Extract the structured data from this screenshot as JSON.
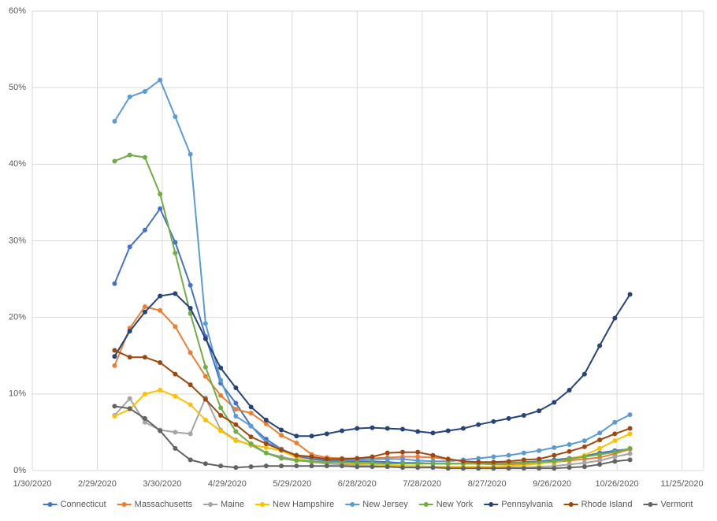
{
  "chart_data": {
    "type": "line",
    "x": [
      "2020-03-08",
      "2020-03-15",
      "2020-03-22",
      "2020-03-29",
      "2020-04-05",
      "2020-04-12",
      "2020-04-19",
      "2020-04-26",
      "2020-05-03",
      "2020-05-10",
      "2020-05-17",
      "2020-05-24",
      "2020-05-31",
      "2020-06-07",
      "2020-06-14",
      "2020-06-21",
      "2020-06-28",
      "2020-07-05",
      "2020-07-12",
      "2020-07-19",
      "2020-07-26",
      "2020-08-02",
      "2020-08-09",
      "2020-08-16",
      "2020-08-23",
      "2020-08-30",
      "2020-09-06",
      "2020-09-13",
      "2020-09-20",
      "2020-09-27",
      "2020-10-04",
      "2020-10-11",
      "2020-10-18",
      "2020-10-25",
      "2020-11-01"
    ],
    "series": [
      {
        "name": "Connecticut",
        "color": "#4472c4",
        "values": [
          24.4,
          29.2,
          31.4,
          34.2,
          29.8,
          24.2,
          17.5,
          11.4,
          8.8,
          5.8,
          4.1,
          2.8,
          1.9,
          1.5,
          1.3,
          1.2,
          1.2,
          1.2,
          1.1,
          1.0,
          1.0,
          0.9,
          0.9,
          0.9,
          0.9,
          1.0,
          1.0,
          1.1,
          1.2,
          1.4,
          1.6,
          1.9,
          2.3,
          2.6,
          2.8
        ]
      },
      {
        "name": "Massachusetts",
        "color": "#ed7d31",
        "values": [
          13.7,
          18.6,
          21.4,
          20.9,
          18.8,
          15.4,
          12.3,
          9.8,
          8.0,
          7.5,
          6.1,
          4.6,
          3.6,
          2.1,
          1.7,
          1.6,
          1.6,
          1.6,
          1.7,
          1.8,
          1.8,
          1.7,
          1.5,
          1.2,
          0.9,
          0.8,
          0.8,
          0.9,
          1.0,
          1.1,
          1.3,
          1.5,
          1.7,
          2.2,
          2.8
        ]
      },
      {
        "name": "Maine",
        "color": "#a5a5a5",
        "values": [
          7.2,
          9.4,
          6.3,
          5.3,
          5.0,
          4.8,
          9.5,
          5.3,
          4.0,
          3.3,
          2.3,
          1.8,
          1.4,
          1.1,
          0.9,
          0.8,
          0.7,
          0.6,
          0.5,
          0.5,
          0.4,
          0.4,
          0.4,
          0.3,
          0.3,
          0.3,
          0.4,
          0.4,
          0.5,
          0.6,
          0.8,
          1.0,
          1.3,
          1.8,
          2.2
        ]
      },
      {
        "name": "New Hampshire",
        "color": "#ffc000",
        "values": [
          7.1,
          8.0,
          10.0,
          10.5,
          9.7,
          8.6,
          6.6,
          5.2,
          3.9,
          3.4,
          3.0,
          2.6,
          1.7,
          1.2,
          1.1,
          1.0,
          0.9,
          0.8,
          0.7,
          0.6,
          0.6,
          0.5,
          0.5,
          0.5,
          0.5,
          0.5,
          0.6,
          0.7,
          0.9,
          1.1,
          1.5,
          2.0,
          2.9,
          3.9,
          4.8
        ]
      },
      {
        "name": "New Jersey",
        "color": "#5b9bd5",
        "values": [
          45.6,
          48.8,
          49.5,
          51.0,
          46.2,
          41.3,
          19.2,
          11.8,
          7.1,
          5.8,
          3.7,
          2.8,
          2.0,
          1.7,
          1.5,
          1.4,
          1.4,
          1.5,
          1.5,
          1.5,
          1.3,
          1.2,
          1.2,
          1.4,
          1.6,
          1.8,
          2.0,
          2.3,
          2.6,
          3.0,
          3.4,
          3.9,
          4.9,
          6.3,
          7.3
        ]
      },
      {
        "name": "New York",
        "color": "#70ad47",
        "values": [
          40.4,
          41.2,
          40.9,
          36.1,
          28.4,
          20.5,
          13.5,
          8.2,
          5.1,
          3.5,
          2.3,
          1.6,
          1.3,
          1.2,
          1.1,
          1.1,
          1.0,
          1.0,
          0.9,
          0.9,
          0.9,
          0.9,
          0.9,
          0.9,
          0.9,
          0.9,
          1.0,
          1.0,
          1.1,
          1.2,
          1.5,
          1.8,
          2.1,
          2.4,
          2.9
        ]
      },
      {
        "name": "Pennsylvania",
        "color": "#264478",
        "values": [
          14.9,
          18.2,
          20.7,
          22.8,
          23.1,
          21.2,
          17.2,
          13.4,
          10.8,
          8.3,
          6.6,
          5.3,
          4.5,
          4.5,
          4.8,
          5.2,
          5.5,
          5.6,
          5.5,
          5.4,
          5.1,
          4.9,
          5.2,
          5.5,
          6.0,
          6.4,
          6.8,
          7.2,
          7.8,
          8.9,
          10.5,
          12.6,
          16.3,
          19.9,
          23.0
        ]
      },
      {
        "name": "Rhode Island",
        "color": "#9e480e",
        "values": [
          15.7,
          14.8,
          14.8,
          14.1,
          12.6,
          11.2,
          9.3,
          7.2,
          6.0,
          4.4,
          3.5,
          2.7,
          2.0,
          1.8,
          1.5,
          1.5,
          1.6,
          1.8,
          2.3,
          2.4,
          2.4,
          2.0,
          1.5,
          1.2,
          1.1,
          1.1,
          1.2,
          1.4,
          1.5,
          2.0,
          2.5,
          3.1,
          4.0,
          4.8,
          5.5
        ]
      },
      {
        "name": "Vermont",
        "color": "#636363",
        "values": [
          8.4,
          8.1,
          6.8,
          5.2,
          2.9,
          1.4,
          0.9,
          0.6,
          0.4,
          0.5,
          0.6,
          0.6,
          0.6,
          0.6,
          0.6,
          0.6,
          0.5,
          0.5,
          0.5,
          0.4,
          0.4,
          0.4,
          0.3,
          0.3,
          0.3,
          0.3,
          0.3,
          0.3,
          0.3,
          0.3,
          0.4,
          0.5,
          0.8,
          1.2,
          1.4
        ]
      }
    ],
    "xlim": [
      "2020-01-30",
      "2020-12-05"
    ],
    "xticks": [
      {
        "value": "2020-01-30",
        "label": "1/30/2020"
      },
      {
        "value": "2020-02-29",
        "label": "2/29/2020"
      },
      {
        "value": "2020-03-30",
        "label": "3/30/2020"
      },
      {
        "value": "2020-04-29",
        "label": "4/29/2020"
      },
      {
        "value": "2020-05-29",
        "label": "5/29/2020"
      },
      {
        "value": "2020-06-28",
        "label": "6/28/2020"
      },
      {
        "value": "2020-07-28",
        "label": "7/28/2020"
      },
      {
        "value": "2020-08-27",
        "label": "8/27/2020"
      },
      {
        "value": "2020-09-26",
        "label": "9/26/2020"
      },
      {
        "value": "2020-10-26",
        "label": "10/26/2020"
      },
      {
        "value": "2020-11-25",
        "label": "11/25/2020"
      }
    ],
    "ylim": [
      0,
      60
    ],
    "yticks": [
      {
        "value": 0,
        "label": "0%"
      },
      {
        "value": 10,
        "label": "10%"
      },
      {
        "value": 20,
        "label": "20%"
      },
      {
        "value": 30,
        "label": "30%"
      },
      {
        "value": 40,
        "label": "40%"
      },
      {
        "value": 50,
        "label": "50%"
      },
      {
        "value": 60,
        "label": "60%"
      }
    ],
    "grid": true,
    "legend": "bottom"
  }
}
